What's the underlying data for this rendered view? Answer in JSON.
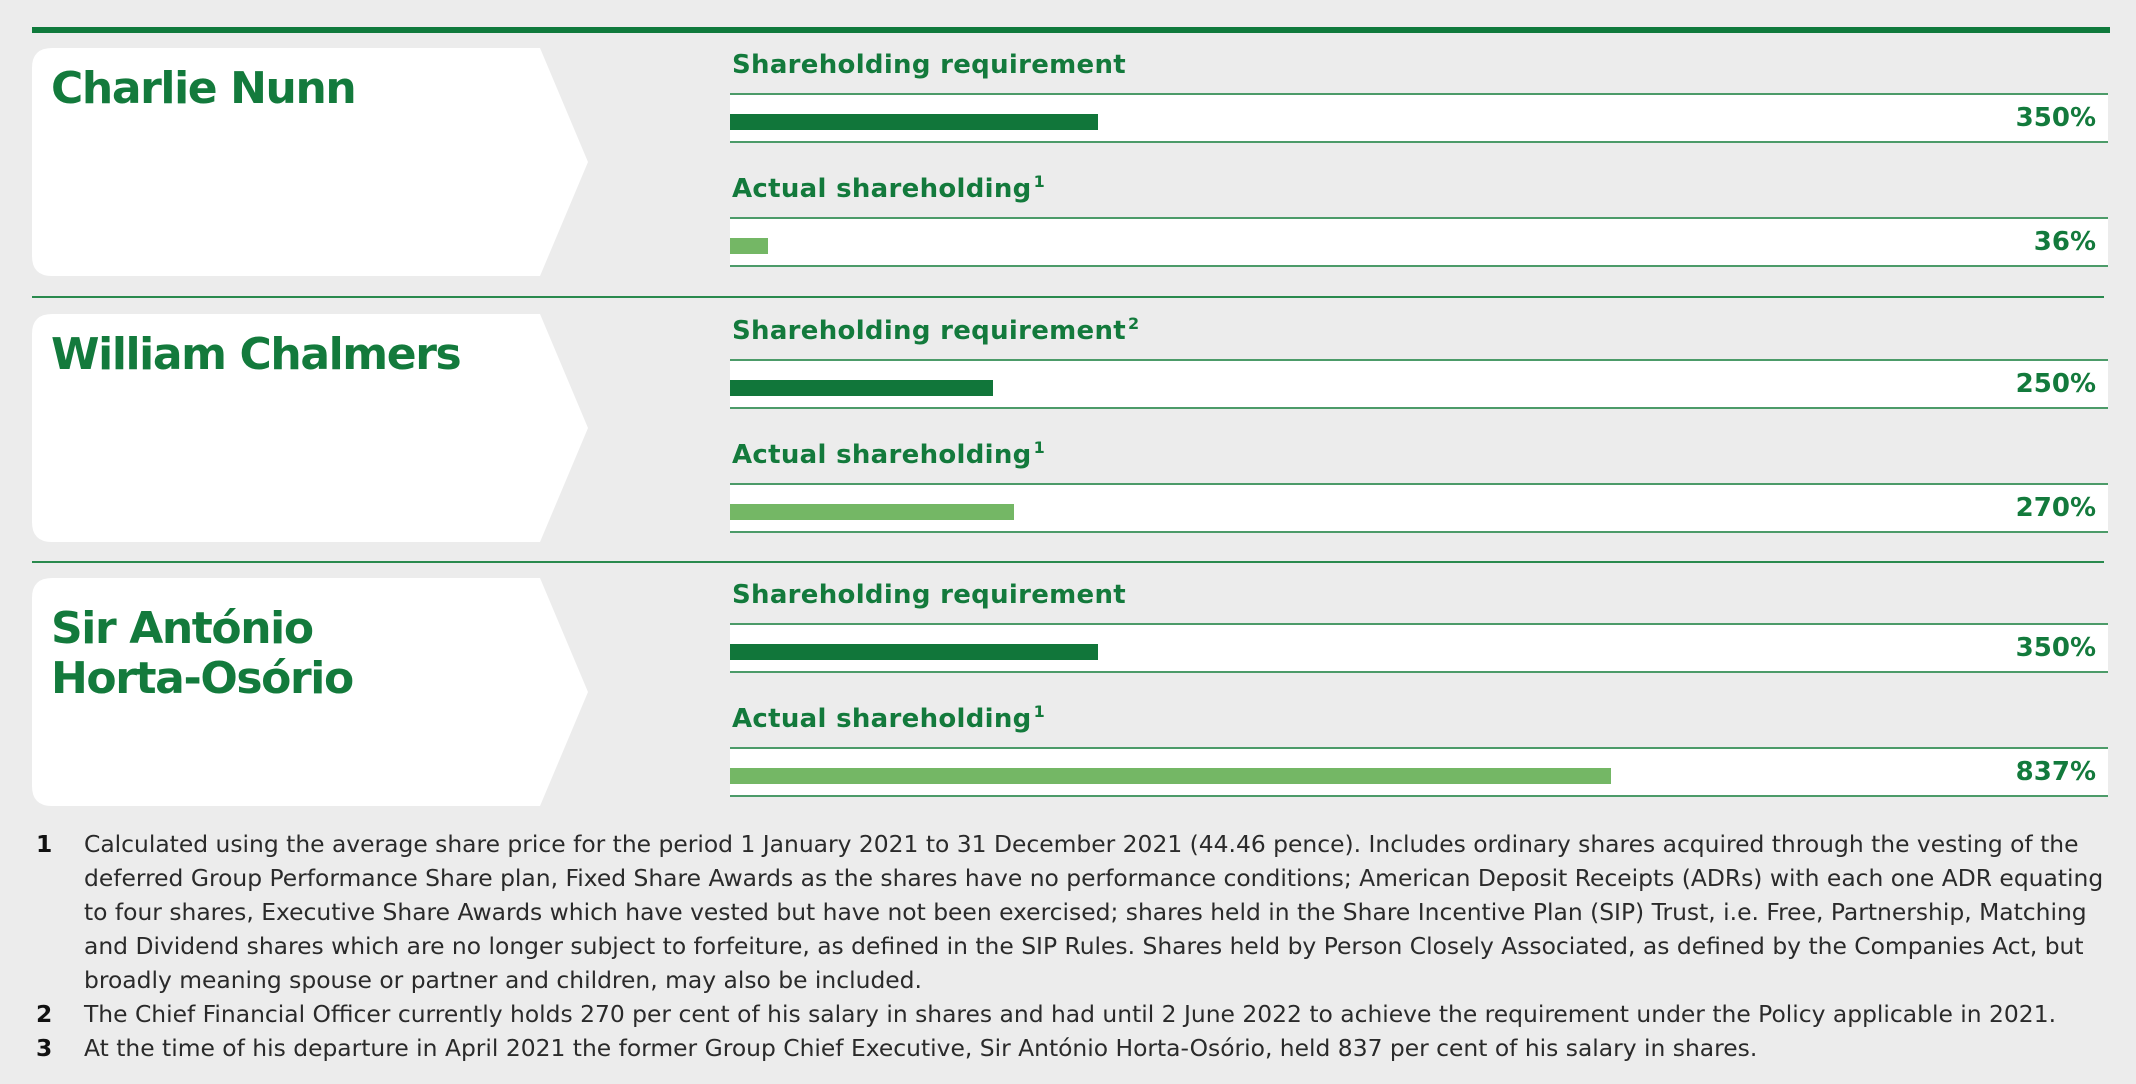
{
  "chart_data": {
    "type": "bar",
    "orientation": "horizontal",
    "value_unit": "% of salary",
    "xlim": [
      0,
      1300
    ],
    "colors": {
      "requirement": "#11763a",
      "actual": "#74b765",
      "text": "#137a3c",
      "rule": "#0f7a3c",
      "background": "#ececec"
    },
    "executives": [
      {
        "name": "Charlie Nunn",
        "requirement": {
          "label": "Shareholding requirement",
          "footnote": "",
          "value": 350,
          "display": "350%"
        },
        "actual": {
          "label": "Actual shareholding",
          "footnote": "1",
          "value": 36,
          "display": "36%"
        }
      },
      {
        "name": "William Chalmers",
        "requirement": {
          "label": "Shareholding requirement",
          "footnote": "2",
          "value": 250,
          "display": "250%"
        },
        "actual": {
          "label": "Actual shareholding",
          "footnote": "1",
          "value": 270,
          "display": "270%"
        }
      },
      {
        "name": "Sir António Horta-Osório",
        "requirement": {
          "label": "Shareholding requirement",
          "footnote": "",
          "value": 350,
          "display": "350%"
        },
        "actual": {
          "label": "Actual shareholding",
          "footnote": "1",
          "value": 837,
          "display": "837%"
        }
      }
    ]
  },
  "footnotes": [
    {
      "num": "1",
      "text": "Calculated using the average share price for the period 1 January 2021 to 31 December 2021 (44.46 pence). Includes ordinary shares acquired through the vesting of the deferred Group Performance Share plan, Fixed Share Awards as the shares have no performance conditions; American Deposit Receipts (ADRs) with each one ADR equating to four shares, Executive Share Awards which have vested but have not been exercised; shares held in the Share Incentive Plan (SIP) Trust, i.e. Free, Partnership, Matching and Dividend shares which are no longer subject to forfeiture, as defined in the SIP Rules. Shares held by Person Closely Associated, as defined by the Companies Act, but broadly meaning spouse or partner and children, may also be included."
    },
    {
      "num": "2",
      "text": "The Chief Financial Officer currently holds 270 per cent of his salary in shares and had until 2 June 2022 to achieve the requirement under the Policy applicable in 2021."
    },
    {
      "num": "3",
      "text": "At the time of his departure in April 2021 the former Group Chief Executive, Sir António Horta-Osório, held 837 per cent of his salary in shares."
    }
  ]
}
